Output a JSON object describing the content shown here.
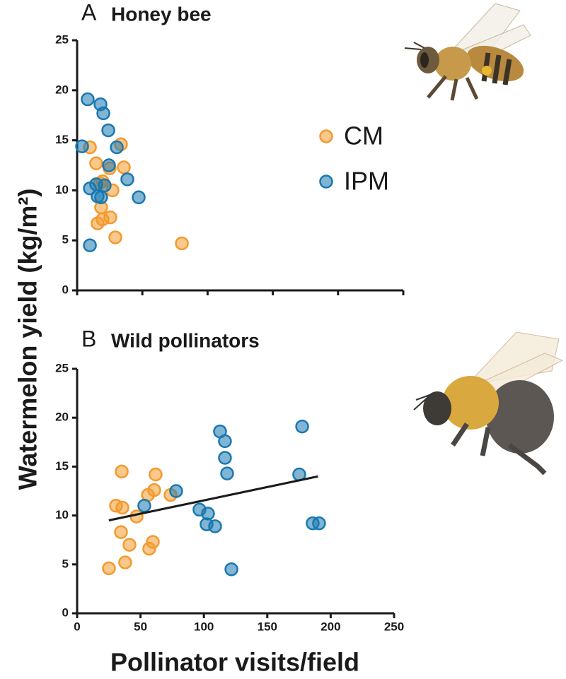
{
  "ylabel": "Watermelon yield (kg/m²)",
  "xlabel": "Pollinator visits/field",
  "chart_data": [
    {
      "type": "scatter",
      "panel": "A",
      "title": "Honey bee",
      "xlim": [
        0,
        250
      ],
      "xticks": [
        0,
        50,
        100,
        150,
        200,
        250
      ],
      "xtick_labels": false,
      "ylim": [
        0,
        25
      ],
      "yticks": [
        0,
        5,
        10,
        15,
        20,
        25
      ],
      "legend": true,
      "series": [
        {
          "name": "CM",
          "color": "#f39a2e",
          "x": [
            9.8,
            33.6,
            14.6,
            35.8,
            24.9,
            19.5,
            17.4,
            27.1,
            18.4,
            25.5,
            19.5,
            15.7,
            29.3,
            80.3
          ],
          "values": [
            14.3,
            14.6,
            12.7,
            12.3,
            12.2,
            10.9,
            10.7,
            10.0,
            8.3,
            7.3,
            7.1,
            6.7,
            5.3,
            4.7
          ]
        },
        {
          "name": "IPM",
          "color": "#1a78b0",
          "x": [
            8.1,
            17.9,
            20.1,
            23.9,
            3.8,
            30.4,
            24.4,
            38.5,
            14.6,
            9.8,
            15.7,
            47.2,
            18.4,
            9.8,
            21.1
          ],
          "values": [
            19.1,
            18.6,
            17.7,
            16.0,
            14.4,
            14.3,
            12.5,
            11.1,
            10.6,
            10.2,
            9.4,
            9.3,
            9.3,
            4.5,
            10.5
          ]
        }
      ]
    },
    {
      "type": "scatter",
      "panel": "B",
      "title": "Wild pollinators",
      "xlim": [
        0,
        250
      ],
      "xticks": [
        0,
        50,
        100,
        150,
        200,
        250
      ],
      "xtick_labels": true,
      "ylim": [
        0,
        25
      ],
      "yticks": [
        0,
        5,
        10,
        15,
        20,
        25
      ],
      "legend": false,
      "series": [
        {
          "name": "CM",
          "color": "#f39a2e",
          "x": [
            35.2,
            61.9,
            60.8,
            55.9,
            73.7,
            30.7,
            35.7,
            46.9,
            34.6,
            41.3,
            59.7,
            56.9,
            37.9,
            25.1
          ],
          "values": [
            14.5,
            14.2,
            12.6,
            12.1,
            12.1,
            11.0,
            10.8,
            9.9,
            8.3,
            7.0,
            7.3,
            6.6,
            5.2,
            4.6
          ]
        },
        {
          "name": "IPM",
          "color": "#1a78b0",
          "x": [
            177.5,
            112.7,
            116.6,
            116.6,
            118.3,
            175.2,
            78.1,
            53.0,
            96.5,
            103.2,
            102.1,
            108.8,
            185.8,
            190.8,
            121.7
          ],
          "values": [
            19.1,
            18.6,
            17.6,
            15.9,
            14.3,
            14.2,
            12.5,
            11.0,
            10.6,
            10.2,
            9.1,
            8.9,
            9.2,
            9.2,
            4.5
          ]
        }
      ],
      "trendline": {
        "x": [
          25,
          190
        ],
        "y": [
          9.5,
          14.0
        ]
      }
    }
  ]
}
